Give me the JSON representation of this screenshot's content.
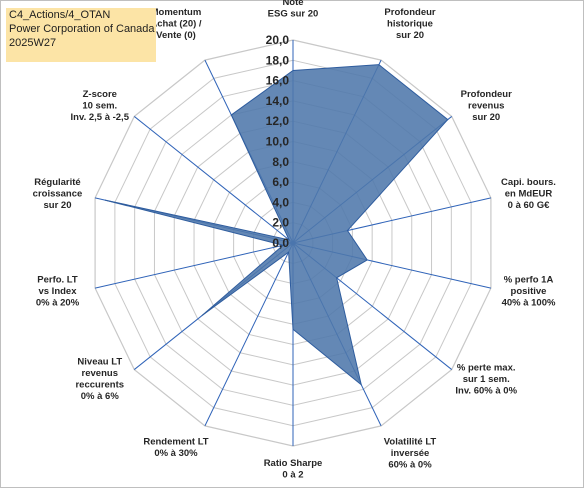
{
  "header": {
    "line1": "C4_Actions/4_OTAN",
    "line2": "Power Corporation of Canada",
    "line3": "2025W27"
  },
  "chart_data": {
    "type": "radar",
    "title": "",
    "rmin": 0,
    "rmax": 20,
    "ticks": [
      "0,0",
      "2,0",
      "4,0",
      "6,0",
      "8,0",
      "10,0",
      "12,0",
      "14,0",
      "16,0",
      "18,0",
      "20,0"
    ],
    "categories": [
      [
        "Note",
        "ESG sur 20"
      ],
      [
        "Profondeur",
        "historique",
        "sur 20"
      ],
      [
        "Profondeur",
        "revenus",
        "sur 20"
      ],
      [
        "Capi. bours.",
        "en MdEUR",
        "0 à 60 G€"
      ],
      [
        "% perfo 1A",
        "positive",
        "40% à 100%"
      ],
      [
        "% perte max.",
        "sur 1 sem.",
        "Inv. 60% à 0%"
      ],
      [
        "Volatilité LT",
        "inversée",
        "60% à 0%"
      ],
      [
        "Ratio Sharpe",
        "0 à 2"
      ],
      [
        "Rendement LT",
        "0% à 30%"
      ],
      [
        "Niveau LT",
        "revenus",
        "reccurents",
        "0% à 6%"
      ],
      [
        "Perfo. LT",
        "vs Index",
        "0% à 20%"
      ],
      [
        "Régularité",
        "croissance",
        "sur 20"
      ],
      [
        "Z-score",
        "10 sem.",
        "Inv. 2,5 à -2,5"
      ],
      [
        "Momentum",
        "Achat (20) /",
        "Vente (0)"
      ]
    ],
    "values": [
      17,
      19.5,
      19.5,
      5.5,
      7.5,
      5.5,
      15.5,
      8.5,
      1.0,
      11.5,
      1.0,
      19.0,
      0.5,
      14.0
    ],
    "grid": true,
    "colors": {
      "fill": "#4f78ab",
      "line": "#2e5c9e",
      "grid": "#c8c8c8",
      "spoke": "#2f63b8"
    }
  }
}
